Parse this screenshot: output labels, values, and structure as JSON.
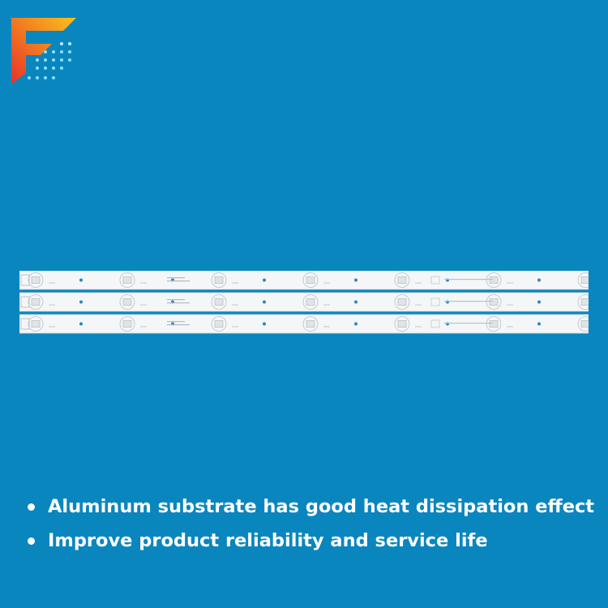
{
  "logo": {
    "icon": "f-brand-logo-icon"
  },
  "product": {
    "name": "led-backlight-strip",
    "strip_count": 3,
    "leds_per_strip": 7,
    "colors": {
      "background": "#0a86bf",
      "strip": "#f4f6f7",
      "led": "#dfe4e8"
    }
  },
  "features": [
    {
      "text": "Aluminum substrate has good heat dissipation effect"
    },
    {
      "text": "Improve product reliability and service life"
    }
  ]
}
